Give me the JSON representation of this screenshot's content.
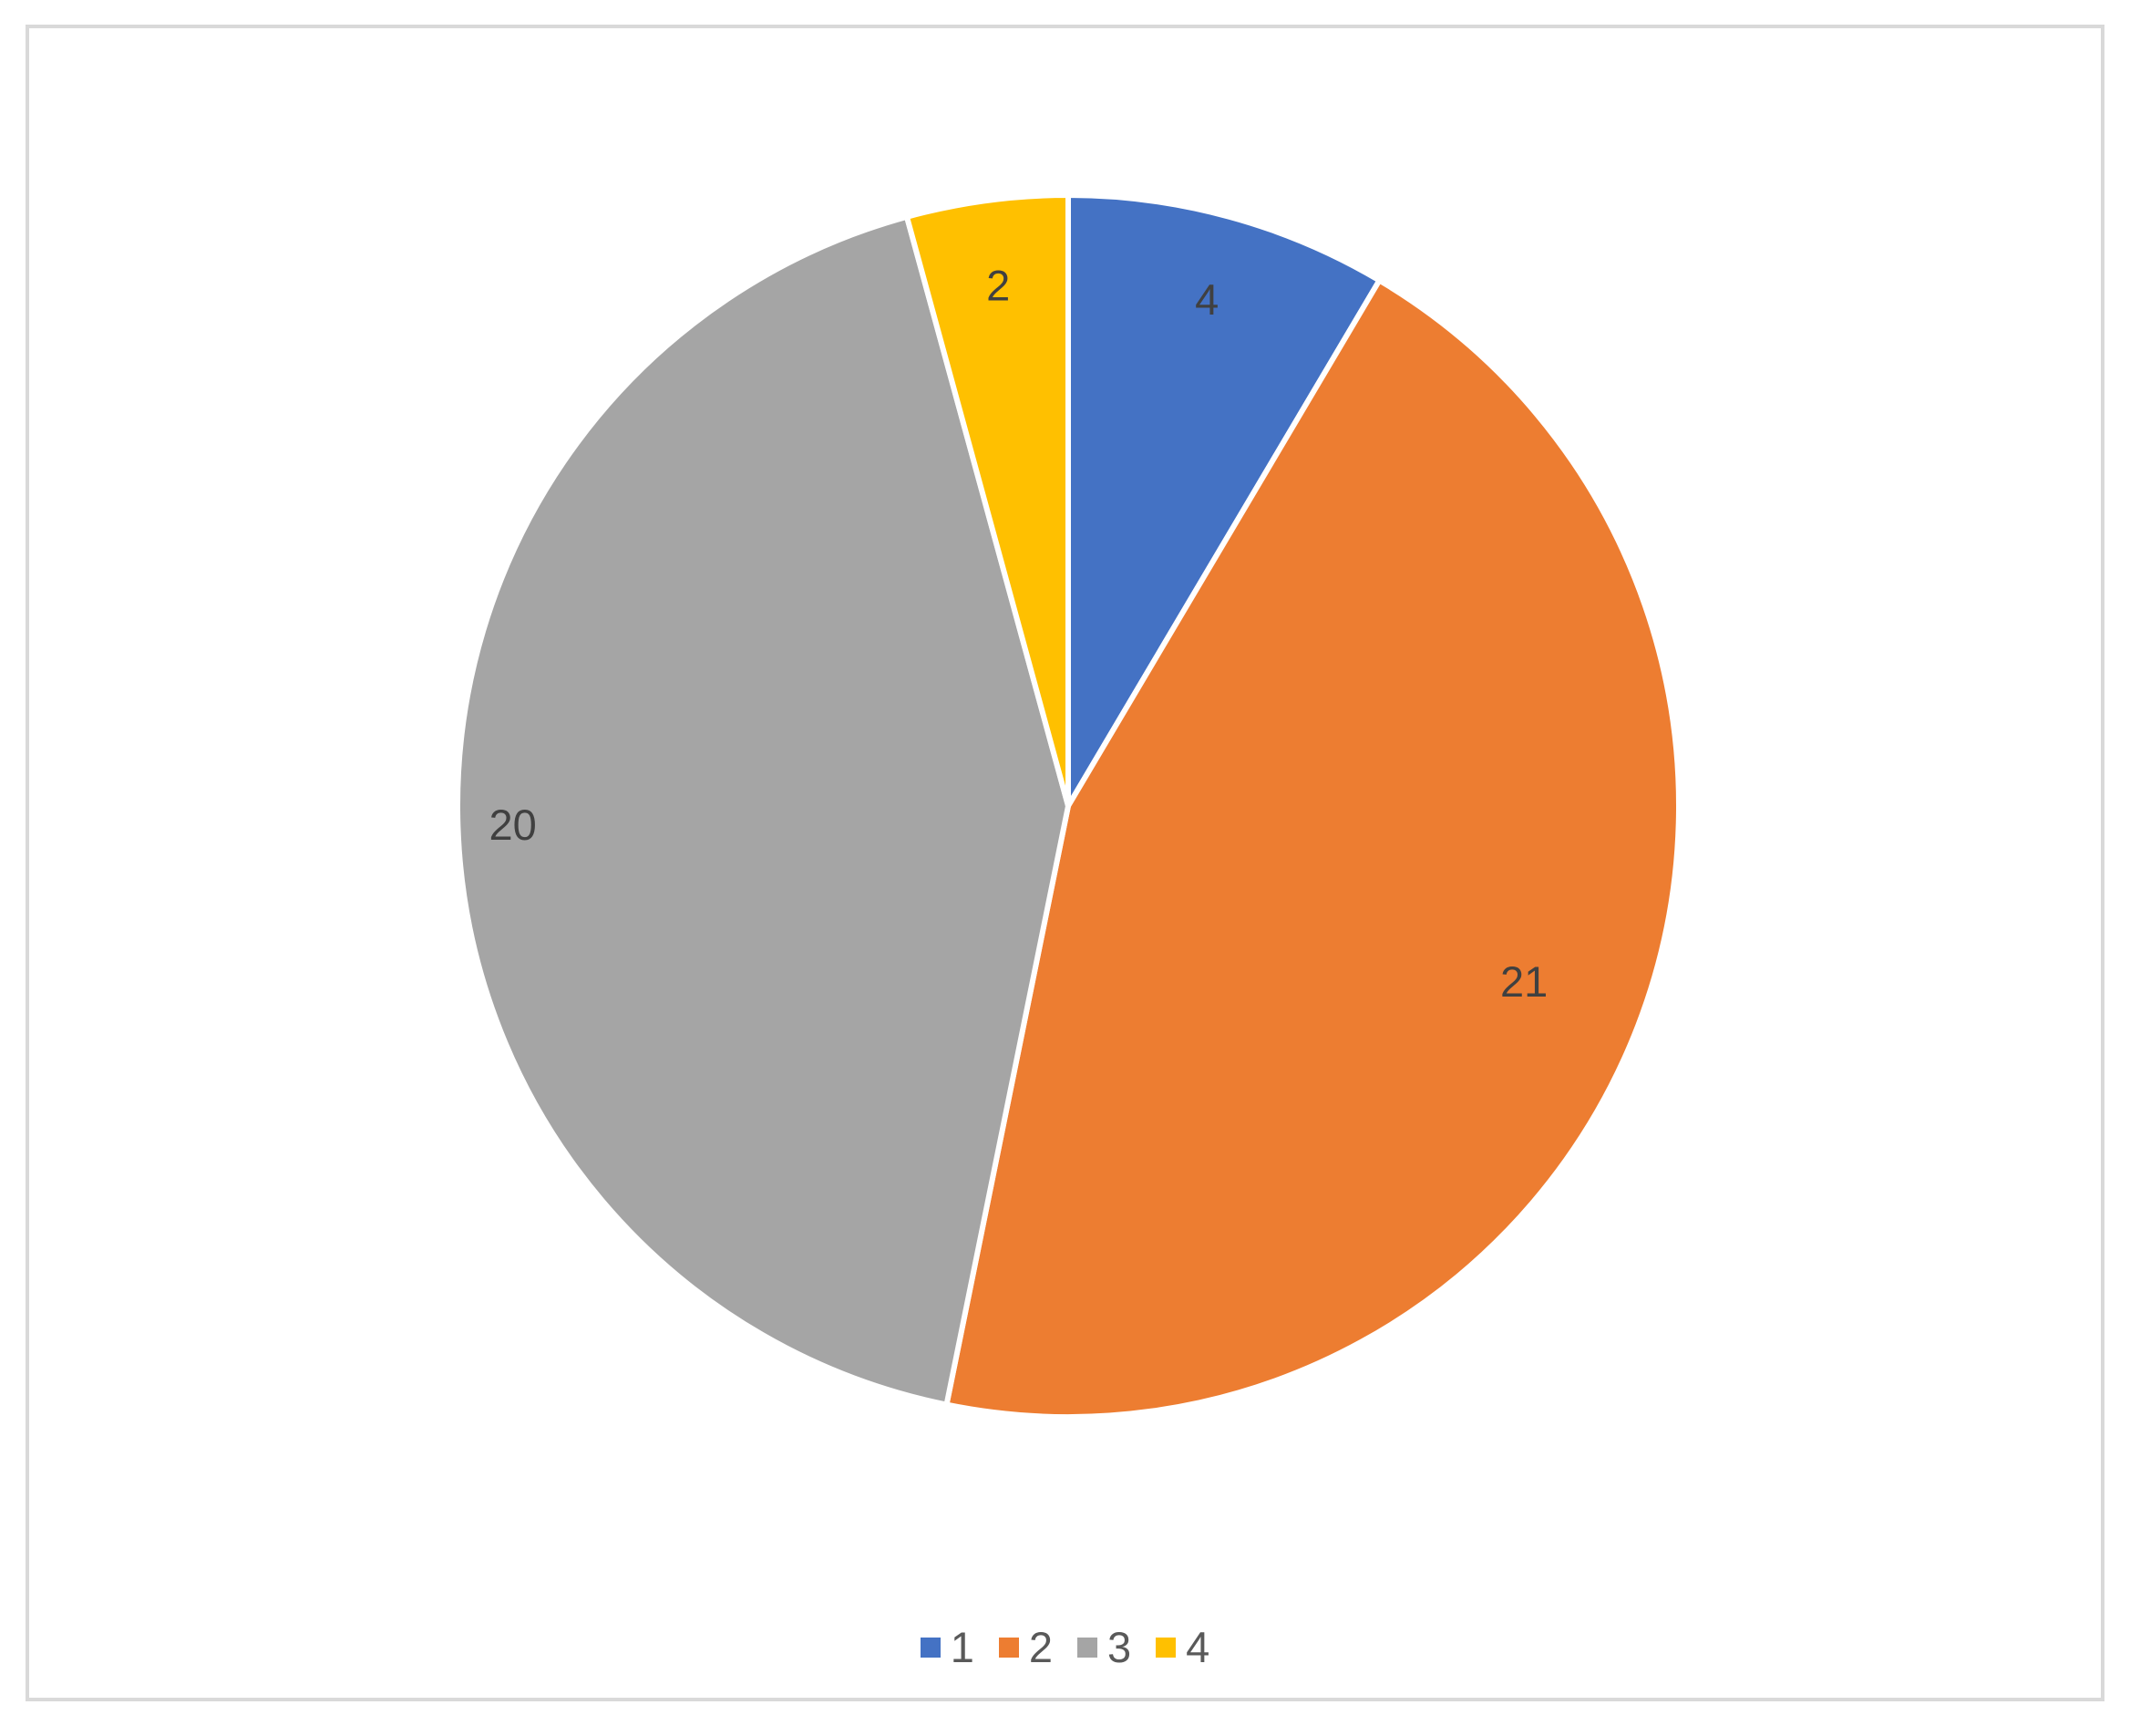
{
  "chart_data": {
    "type": "pie",
    "title": "",
    "categories": [
      "1",
      "2",
      "3",
      "4"
    ],
    "values": [
      4,
      21,
      20,
      2
    ],
    "data_labels": [
      "4",
      "21",
      "20",
      "2"
    ],
    "colors": [
      "#4472c4",
      "#ed7d31",
      "#a5a5a5",
      "#ffc000"
    ],
    "start_angle_deg": 0,
    "direction": "clockwise",
    "legend_position": "bottom",
    "legend": [
      {
        "label": "1",
        "color": "#4472c4"
      },
      {
        "label": "2",
        "color": "#ed7d31"
      },
      {
        "label": "3",
        "color": "#a5a5a5"
      },
      {
        "label": "4",
        "color": "#ffc000"
      }
    ]
  }
}
